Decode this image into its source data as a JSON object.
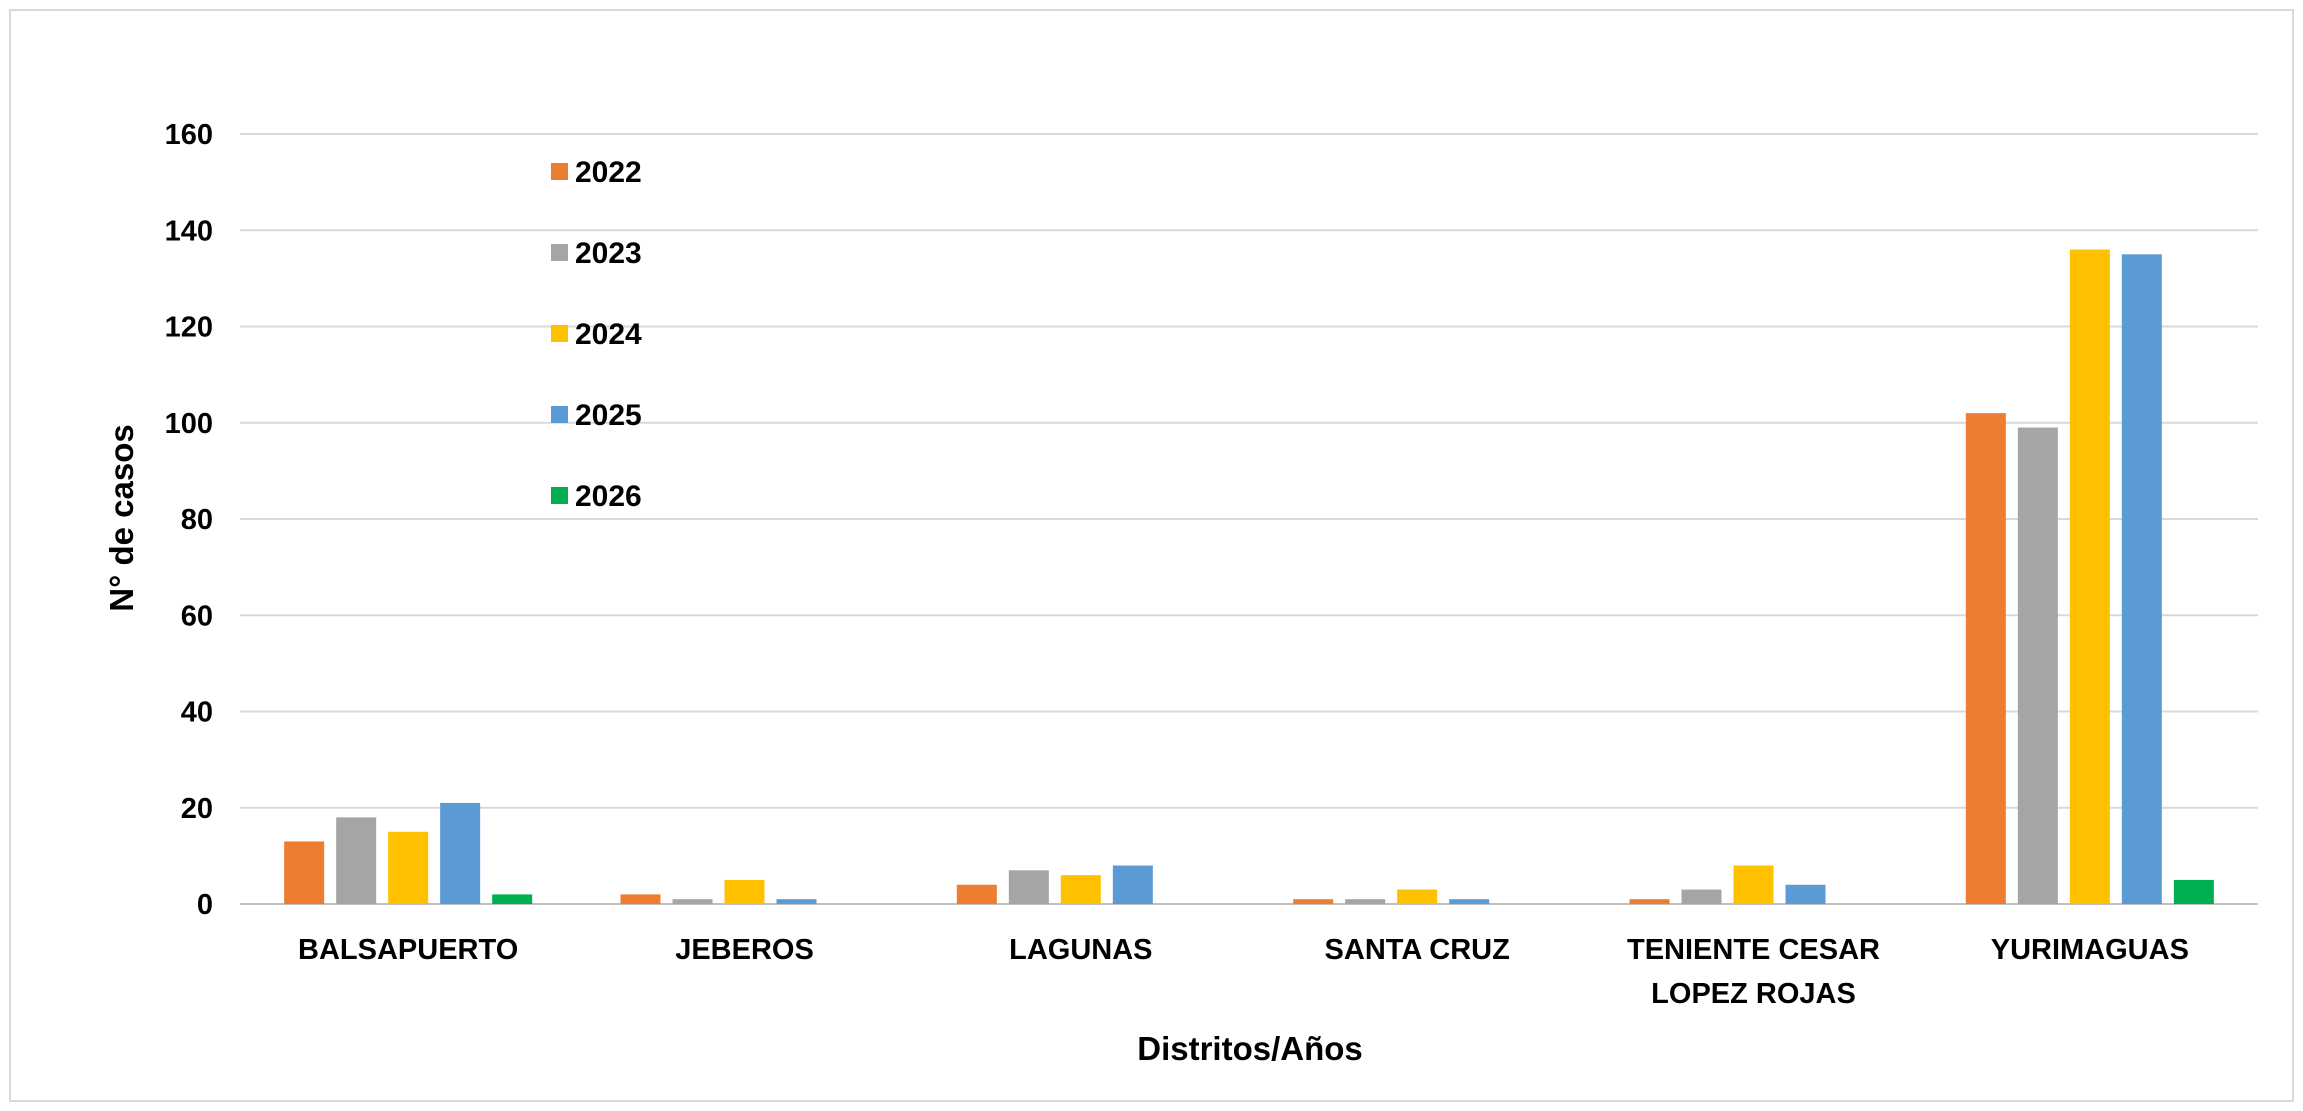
{
  "chart_data": {
    "type": "bar",
    "title": "",
    "xlabel": "Distritos/Años",
    "ylabel": "N° de casos",
    "ylim": [
      0,
      160
    ],
    "yticks": [
      0,
      20,
      40,
      60,
      80,
      100,
      120,
      140,
      160
    ],
    "grid": true,
    "legend_position": "top-left",
    "categories": [
      [
        "BALSAPUERTO"
      ],
      [
        "JEBEROS"
      ],
      [
        "LAGUNAS"
      ],
      [
        "SANTA CRUZ"
      ],
      [
        "TENIENTE CESAR",
        "LOPEZ ROJAS"
      ],
      [
        "YURIMAGUAS"
      ]
    ],
    "series": [
      {
        "name": "2022",
        "color": "#ED7D31",
        "values": [
          13,
          2,
          4,
          1,
          1,
          102
        ]
      },
      {
        "name": "2023",
        "color": "#A5A5A5",
        "values": [
          18,
          1,
          7,
          1,
          3,
          99
        ]
      },
      {
        "name": "2024",
        "color": "#FFC000",
        "values": [
          15,
          5,
          6,
          3,
          8,
          136
        ]
      },
      {
        "name": "2025",
        "color": "#5B9BD5",
        "values": [
          21,
          1,
          8,
          1,
          4,
          135
        ]
      },
      {
        "name": "2026",
        "color": "#00B050",
        "values": [
          2,
          0,
          0,
          0,
          0,
          5
        ]
      }
    ]
  },
  "colors": {
    "gridline": "#d9d9d9",
    "axis": "#bfbfbf",
    "border": "#d9d9d9"
  }
}
